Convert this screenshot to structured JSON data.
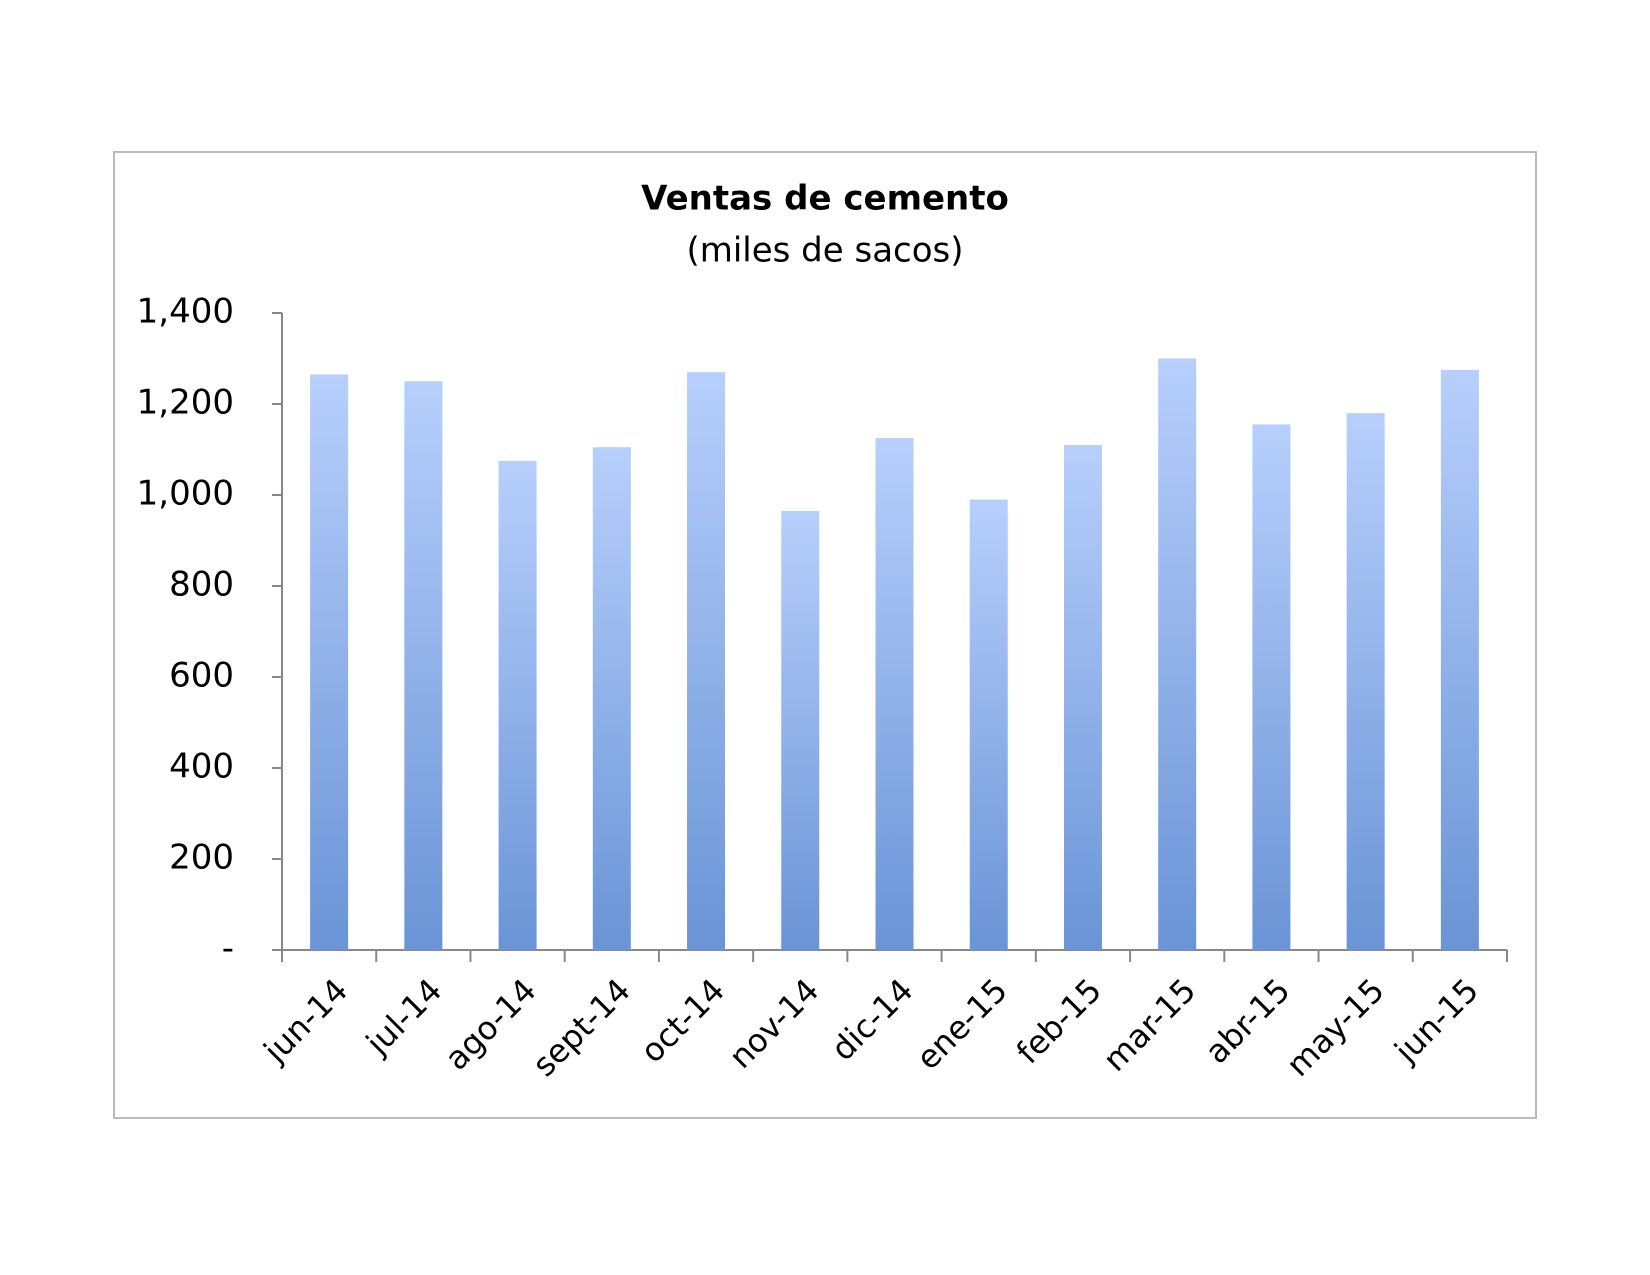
{
  "chart_data": {
    "type": "bar",
    "title": "Ventas de cemento",
    "subtitle": "(miles de sacos)",
    "categories": [
      "jun-14",
      "jul-14",
      "ago-14",
      "sept-14",
      "oct-14",
      "nov-14",
      "dic-14",
      "ene-15",
      "feb-15",
      "mar-15",
      "abr-15",
      "may-15",
      "jun-15"
    ],
    "values": [
      1265,
      1250,
      1075,
      1105,
      1270,
      965,
      1125,
      990,
      1110,
      1300,
      1155,
      1180,
      1275
    ],
    "gradient": [
      "#b7cffc",
      "#6a94d6"
    ],
    "ylim": [
      0,
      1400
    ],
    "yticks": [
      {
        "value": 0,
        "label": "-"
      },
      200,
      400,
      600,
      800,
      {
        "value": 1000,
        "label": "1,000"
      },
      {
        "value": 1200,
        "label": "1,200"
      },
      {
        "value": 1400,
        "label": "1,400"
      }
    ],
    "grid": false
  }
}
